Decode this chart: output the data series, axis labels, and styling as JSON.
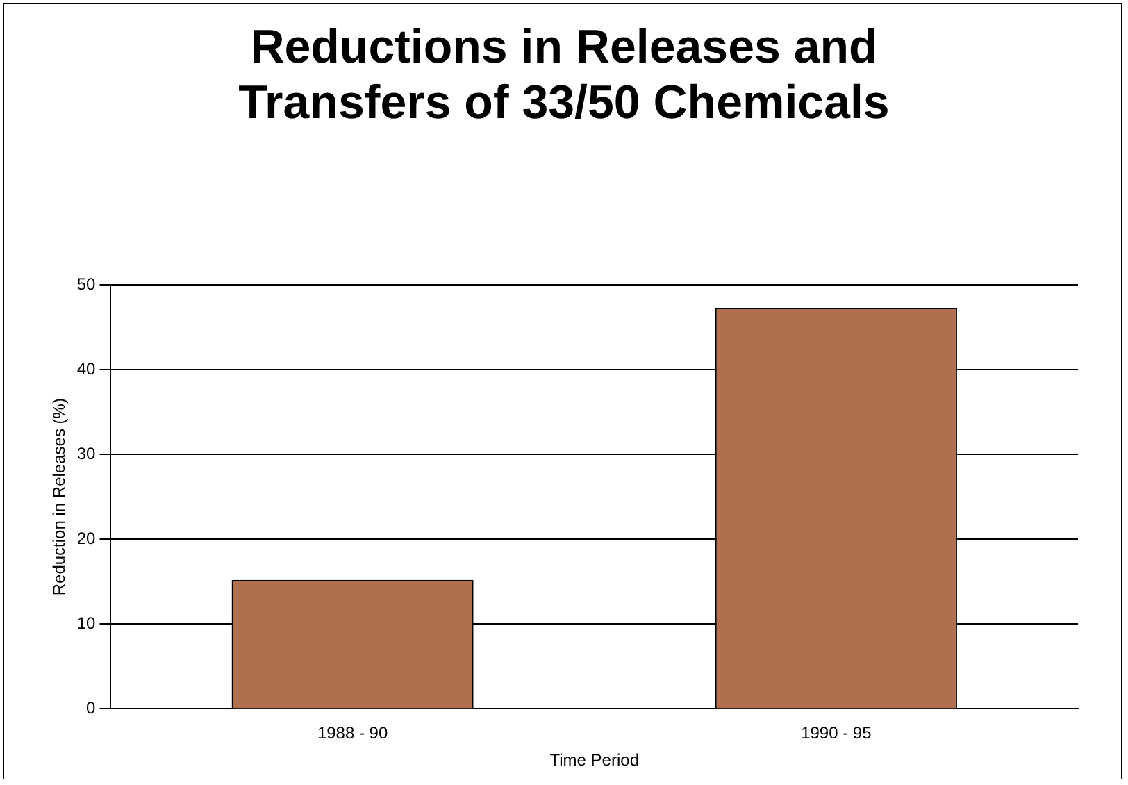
{
  "chart_data": {
    "type": "bar",
    "title": "Reductions in Releases and Transfers of 33/50 Chemicals",
    "xlabel": "Time Period",
    "ylabel": "Reduction in Releases (%)",
    "categories": [
      "1988 - 90",
      "1990 - 95"
    ],
    "values": [
      15.2,
      47.3
    ],
    "color": "#b07050",
    "ylim": [
      0,
      50
    ],
    "yticks": [
      0,
      10,
      20,
      30,
      40,
      50
    ],
    "grid": "y",
    "legend": false
  }
}
